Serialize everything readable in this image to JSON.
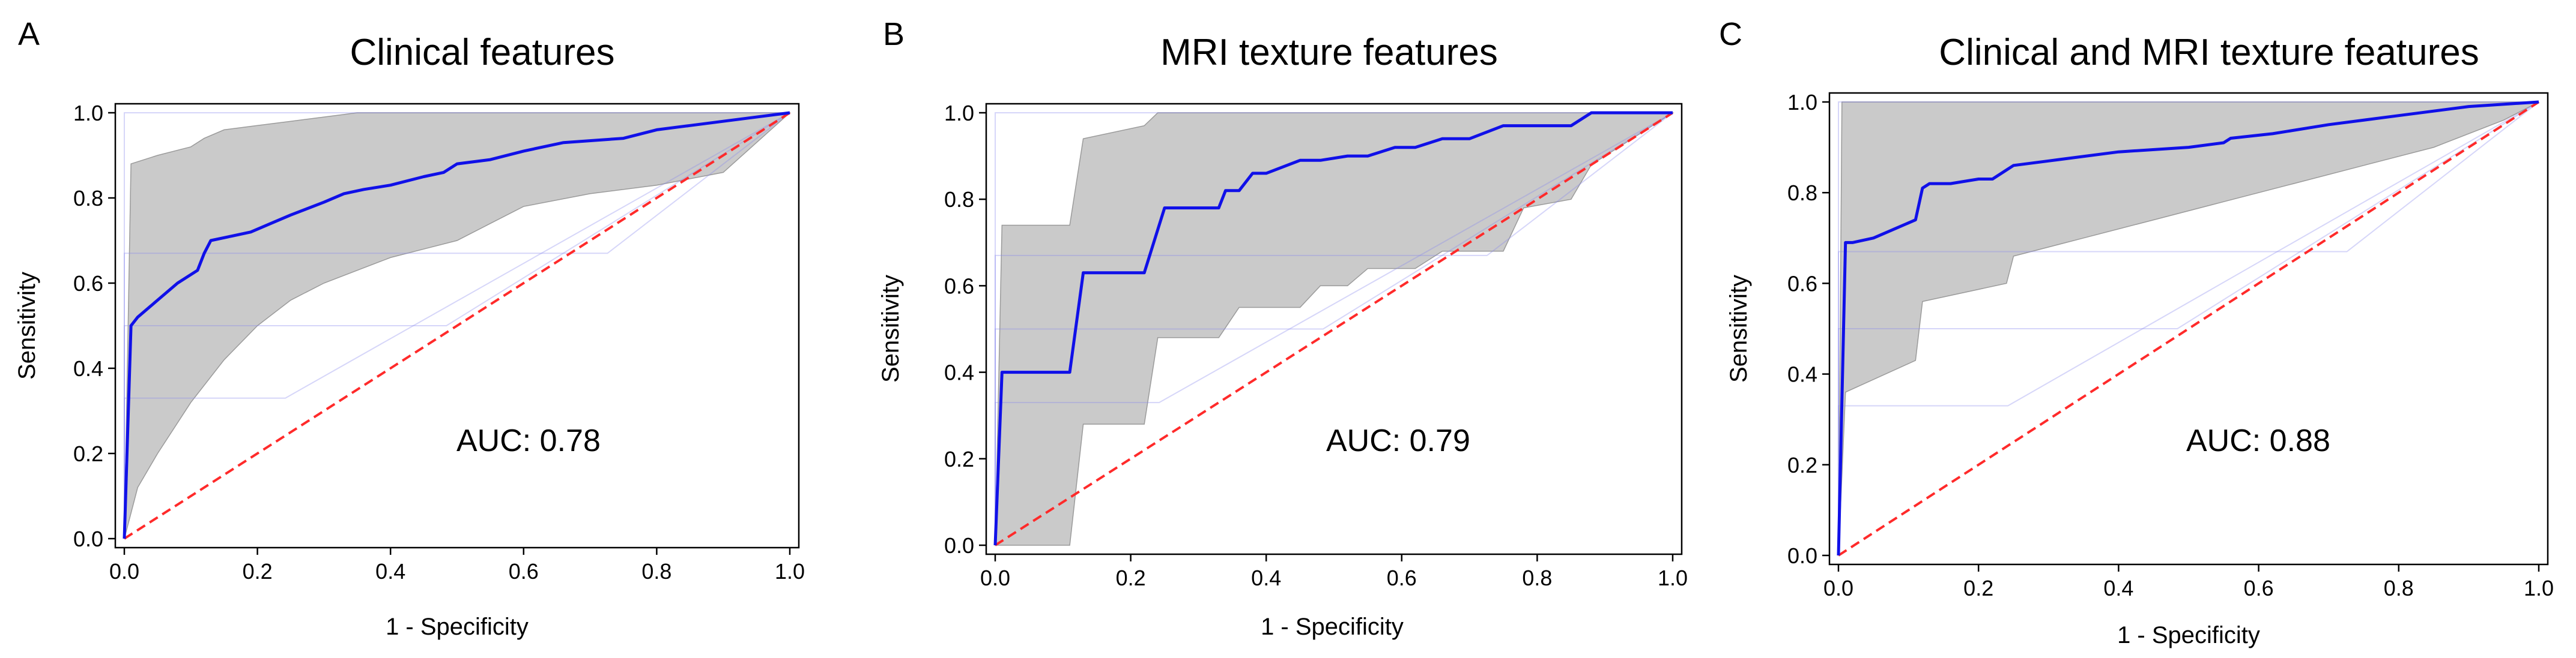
{
  "figure": {
    "colors": {
      "roc": "#1010e8",
      "diagonal": "#ff2a2a",
      "band": "#c4c4c4",
      "boot": "#8a8aee",
      "frame": "#000000"
    }
  },
  "chart_data": [
    {
      "type": "line",
      "panel_label": "A",
      "title": "Clinical features",
      "xlabel": "1 - Specificity",
      "ylabel": "Sensitivity",
      "xlim": [
        0,
        1
      ],
      "ylim": [
        0,
        1
      ],
      "xticks": [
        "0.0",
        "0.2",
        "0.4",
        "0.6",
        "0.8",
        "1.0"
      ],
      "yticks": [
        "0.0",
        "0.2",
        "0.4",
        "0.6",
        "0.8",
        "1.0"
      ],
      "annotation": "AUC: 0.78",
      "auc": 0.78,
      "grid": false,
      "mean_roc": {
        "x": [
          0,
          0.01,
          0.02,
          0.05,
          0.08,
          0.11,
          0.12,
          0.13,
          0.16,
          0.19,
          0.22,
          0.25,
          0.3,
          0.33,
          0.36,
          0.4,
          0.45,
          0.48,
          0.5,
          0.55,
          0.6,
          0.66,
          0.75,
          0.8,
          0.85,
          0.9,
          1.0
        ],
        "y": [
          0,
          0.5,
          0.52,
          0.56,
          0.6,
          0.63,
          0.67,
          0.7,
          0.71,
          0.72,
          0.74,
          0.76,
          0.79,
          0.81,
          0.82,
          0.83,
          0.85,
          0.86,
          0.88,
          0.89,
          0.91,
          0.93,
          0.94,
          0.96,
          0.97,
          0.98,
          1.0
        ]
      },
      "band_upper": {
        "x": [
          0,
          0.01,
          0.05,
          0.1,
          0.12,
          0.15,
          0.2,
          0.25,
          0.3,
          0.35,
          0.4,
          0.5,
          1.0
        ],
        "y": [
          0,
          0.88,
          0.9,
          0.92,
          0.94,
          0.96,
          0.97,
          0.98,
          0.99,
          1.0,
          1.0,
          1.0,
          1.0
        ]
      },
      "band_lower": {
        "x": [
          0,
          0.02,
          0.05,
          0.1,
          0.15,
          0.2,
          0.25,
          0.3,
          0.35,
          0.4,
          0.45,
          0.5,
          0.55,
          0.6,
          0.7,
          0.8,
          0.9,
          1.0
        ],
        "y": [
          0,
          0.12,
          0.2,
          0.32,
          0.42,
          0.5,
          0.56,
          0.6,
          0.63,
          0.66,
          0.68,
          0.7,
          0.74,
          0.78,
          0.81,
          0.83,
          0.86,
          1.0
        ]
      }
    },
    {
      "type": "line",
      "panel_label": "B",
      "title": "MRI texture features",
      "xlabel": "1 - Specificity",
      "ylabel": "Sensitivity",
      "xlim": [
        0,
        1
      ],
      "ylim": [
        0,
        1
      ],
      "xticks": [
        "0.0",
        "0.2",
        "0.4",
        "0.6",
        "0.8",
        "1.0"
      ],
      "yticks": [
        "0.0",
        "0.2",
        "0.4",
        "0.6",
        "0.8",
        "1.0"
      ],
      "annotation": "AUC: 0.79",
      "auc": 0.79,
      "grid": false,
      "mean_roc": {
        "x": [
          0,
          0.01,
          0.11,
          0.13,
          0.22,
          0.24,
          0.25,
          0.33,
          0.34,
          0.36,
          0.38,
          0.4,
          0.45,
          0.48,
          0.52,
          0.55,
          0.59,
          0.62,
          0.66,
          0.7,
          0.75,
          0.85,
          0.88,
          1.0
        ],
        "y": [
          0,
          0.4,
          0.4,
          0.63,
          0.63,
          0.73,
          0.78,
          0.78,
          0.82,
          0.82,
          0.86,
          0.86,
          0.89,
          0.89,
          0.9,
          0.9,
          0.92,
          0.92,
          0.94,
          0.94,
          0.97,
          0.97,
          1.0,
          1.0
        ]
      },
      "band_upper": {
        "x": [
          0,
          0.01,
          0.11,
          0.13,
          0.22,
          0.24,
          0.88,
          1.0
        ],
        "y": [
          0,
          0.74,
          0.74,
          0.94,
          0.97,
          1.0,
          1.0,
          1.0
        ]
      },
      "band_lower": {
        "x": [
          0,
          0.01,
          0.11,
          0.13,
          0.22,
          0.24,
          0.33,
          0.36,
          0.45,
          0.48,
          0.52,
          0.55,
          0.62,
          0.66,
          0.75,
          0.78,
          0.85,
          0.88,
          1.0
        ],
        "y": [
          0,
          0.0,
          0.0,
          0.28,
          0.28,
          0.48,
          0.48,
          0.55,
          0.55,
          0.6,
          0.6,
          0.64,
          0.64,
          0.68,
          0.68,
          0.78,
          0.8,
          0.88,
          1.0
        ]
      }
    },
    {
      "type": "line",
      "panel_label": "C",
      "title": "Clinical and MRI texture features",
      "xlabel": "1 - Specificity",
      "ylabel": "Sensitivity",
      "xlim": [
        0,
        1
      ],
      "ylim": [
        0,
        1
      ],
      "xticks": [
        "0.0",
        "0.2",
        "0.4",
        "0.6",
        "0.8",
        "1.0"
      ],
      "yticks": [
        "0.0",
        "0.2",
        "0.4",
        "0.6",
        "0.8",
        "1.0"
      ],
      "annotation": "AUC: 0.88",
      "auc": 0.88,
      "grid": false,
      "mean_roc": {
        "x": [
          0,
          0.01,
          0.02,
          0.05,
          0.08,
          0.11,
          0.12,
          0.13,
          0.16,
          0.2,
          0.22,
          0.24,
          0.25,
          0.3,
          0.4,
          0.5,
          0.55,
          0.56,
          0.62,
          0.7,
          0.8,
          0.9,
          1.0
        ],
        "y": [
          0,
          0.69,
          0.69,
          0.7,
          0.72,
          0.74,
          0.81,
          0.82,
          0.82,
          0.83,
          0.83,
          0.85,
          0.86,
          0.87,
          0.89,
          0.9,
          0.91,
          0.92,
          0.93,
          0.95,
          0.97,
          0.99,
          1.0
        ]
      },
      "band_upper": {
        "x": [
          0,
          0.005,
          1.0
        ],
        "y": [
          0,
          1.0,
          1.0
        ]
      },
      "band_lower": {
        "x": [
          0,
          0.01,
          0.11,
          0.12,
          0.24,
          0.25,
          0.35,
          0.45,
          0.55,
          0.65,
          0.75,
          0.85,
          0.95,
          1.0
        ],
        "y": [
          0,
          0.36,
          0.43,
          0.56,
          0.6,
          0.66,
          0.7,
          0.74,
          0.78,
          0.82,
          0.86,
          0.9,
          0.96,
          1.0
        ]
      }
    }
  ]
}
